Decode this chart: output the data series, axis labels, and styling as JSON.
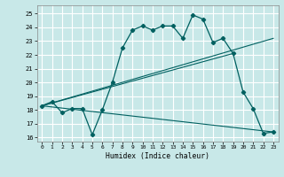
{
  "xlabel": "Humidex (Indice chaleur)",
  "bg_color": "#c8e8e8",
  "grid_color": "#ffffff",
  "line_color": "#006060",
  "xlim": [
    -0.5,
    23.5
  ],
  "ylim": [
    15.7,
    25.6
  ],
  "yticks": [
    16,
    17,
    18,
    19,
    20,
    21,
    22,
    23,
    24,
    25
  ],
  "xticks": [
    0,
    1,
    2,
    3,
    4,
    5,
    6,
    7,
    8,
    9,
    10,
    11,
    12,
    13,
    14,
    15,
    16,
    17,
    18,
    19,
    20,
    21,
    22,
    23
  ],
  "main_x": [
    0,
    1,
    2,
    3,
    4,
    5,
    6,
    7,
    8,
    9,
    10,
    11,
    12,
    13,
    14,
    15,
    16,
    17,
    18,
    19,
    20,
    21,
    22,
    23
  ],
  "main_y": [
    18.3,
    18.6,
    17.8,
    18.1,
    18.1,
    16.2,
    18.0,
    20.0,
    22.5,
    23.8,
    24.1,
    23.8,
    24.1,
    24.1,
    23.2,
    24.9,
    24.6,
    22.9,
    23.2,
    22.1,
    19.3,
    18.1,
    16.3,
    16.4
  ],
  "line1_x": [
    0,
    23
  ],
  "line1_y": [
    18.3,
    23.2
  ],
  "line2_x": [
    0,
    23
  ],
  "line2_y": [
    18.3,
    16.4
  ],
  "line3_x": [
    0,
    19
  ],
  "line3_y": [
    18.3,
    22.1
  ]
}
